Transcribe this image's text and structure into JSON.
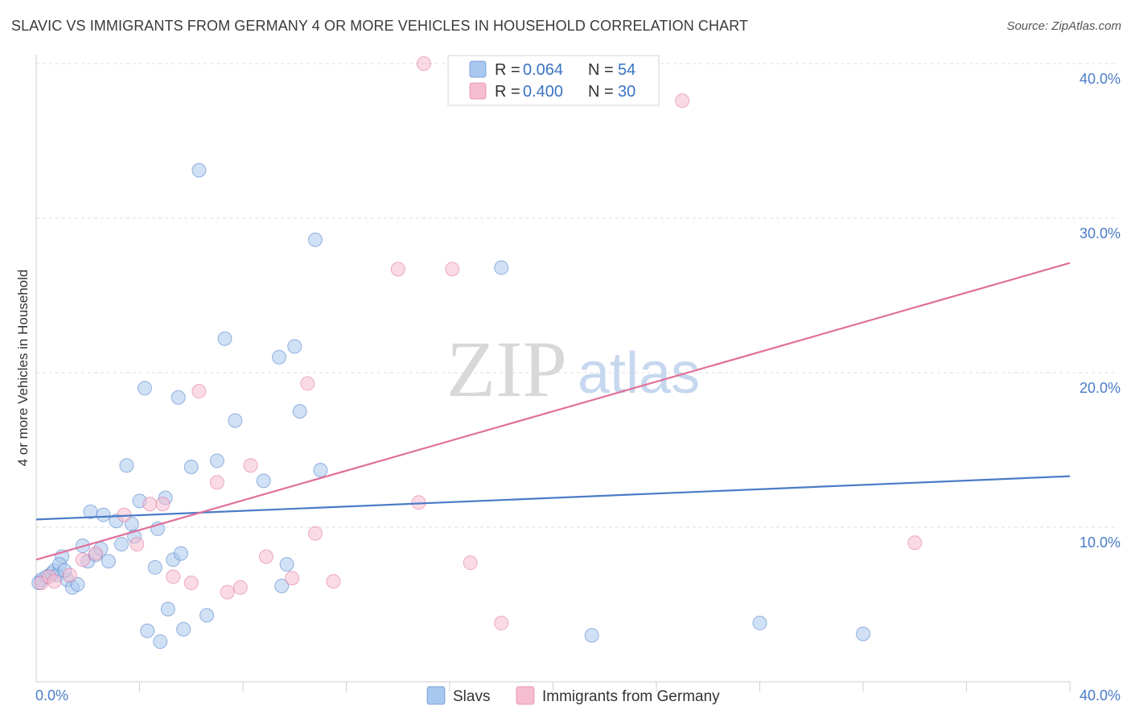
{
  "title": "SLAVIC VS IMMIGRANTS FROM GERMANY 4 OR MORE VEHICLES IN HOUSEHOLD CORRELATION CHART",
  "source": "Source: ZipAtlas.com",
  "watermark": {
    "zip": "ZIP",
    "atlas": "atlas"
  },
  "chart_data": {
    "type": "scatter",
    "ylabel": "4 or more Vehicles in Household",
    "xlim": [
      0,
      40
    ],
    "ylim": [
      0,
      40
    ],
    "x_tick_labels": {
      "min": "0.0%",
      "max": "40.0%"
    },
    "y_ticks": [
      {
        "value": 10,
        "label": "10.0%"
      },
      {
        "value": 20,
        "label": "20.0%"
      },
      {
        "value": 30,
        "label": "30.0%"
      },
      {
        "value": 40,
        "label": "40.0%"
      }
    ],
    "legend": {
      "r_label": "R =",
      "n_label": "N =",
      "entries": [
        {
          "name": "Slavs",
          "r": "0.064",
          "n": "54"
        },
        {
          "name": "Immigrants from Germany",
          "r": "0.400",
          "n": "30"
        }
      ]
    },
    "series": [
      {
        "name": "Slavs",
        "color": "#4a7cc7",
        "fill": "#a9c8ef",
        "trend": {
          "x0": 0,
          "y0": 10.5,
          "x1": 40,
          "y1": 13.3
        },
        "points": [
          [
            0.2,
            6.6
          ],
          [
            0.4,
            6.8
          ],
          [
            0.6,
            7.0
          ],
          [
            0.7,
            7.2
          ],
          [
            0.8,
            6.9
          ],
          [
            1.0,
            8.1
          ],
          [
            0.9,
            7.6
          ],
          [
            1.2,
            6.6
          ],
          [
            1.4,
            6.1
          ],
          [
            1.6,
            6.3
          ],
          [
            1.8,
            8.8
          ],
          [
            2.0,
            7.8
          ],
          [
            2.1,
            11.0
          ],
          [
            2.3,
            8.2
          ],
          [
            2.5,
            8.6
          ],
          [
            2.8,
            7.8
          ],
          [
            2.6,
            10.8
          ],
          [
            3.1,
            10.4
          ],
          [
            3.3,
            8.9
          ],
          [
            3.5,
            14.0
          ],
          [
            3.7,
            10.2
          ],
          [
            3.8,
            9.4
          ],
          [
            4.0,
            11.7
          ],
          [
            4.2,
            19.0
          ],
          [
            4.3,
            3.3
          ],
          [
            4.6,
            7.4
          ],
          [
            4.7,
            9.9
          ],
          [
            4.8,
            2.6
          ],
          [
            5.0,
            11.9
          ],
          [
            5.1,
            4.7
          ],
          [
            5.3,
            7.9
          ],
          [
            5.5,
            18.4
          ],
          [
            5.6,
            8.3
          ],
          [
            5.7,
            3.4
          ],
          [
            6.0,
            13.9
          ],
          [
            6.3,
            33.1
          ],
          [
            6.6,
            4.3
          ],
          [
            7.0,
            14.3
          ],
          [
            7.3,
            22.2
          ],
          [
            7.7,
            16.9
          ],
          [
            8.8,
            13.0
          ],
          [
            9.4,
            21.0
          ],
          [
            9.5,
            6.2
          ],
          [
            9.7,
            7.6
          ],
          [
            10.0,
            21.7
          ],
          [
            10.2,
            17.5
          ],
          [
            10.8,
            28.6
          ],
          [
            11.0,
            13.7
          ],
          [
            18.0,
            26.8
          ],
          [
            21.5,
            3.0
          ],
          [
            28.0,
            3.8
          ],
          [
            32.0,
            3.1
          ],
          [
            0.1,
            6.4
          ],
          [
            1.1,
            7.2
          ]
        ]
      },
      {
        "name": "Immigrants from Germany",
        "color": "#e0709a",
        "fill": "#f6bdd0",
        "trend": {
          "x0": 0,
          "y0": 7.9,
          "x1": 40,
          "y1": 27.1
        },
        "points": [
          [
            0.2,
            6.4
          ],
          [
            0.5,
            6.8
          ],
          [
            0.7,
            6.5
          ],
          [
            1.3,
            6.9
          ],
          [
            1.8,
            7.9
          ],
          [
            2.3,
            8.3
          ],
          [
            3.4,
            10.8
          ],
          [
            3.9,
            8.9
          ],
          [
            4.4,
            11.5
          ],
          [
            4.9,
            11.5
          ],
          [
            5.3,
            6.8
          ],
          [
            6.0,
            6.4
          ],
          [
            6.3,
            18.8
          ],
          [
            7.0,
            12.9
          ],
          [
            7.4,
            5.8
          ],
          [
            7.9,
            6.1
          ],
          [
            8.3,
            14.0
          ],
          [
            8.9,
            8.1
          ],
          [
            9.9,
            6.7
          ],
          [
            10.5,
            19.3
          ],
          [
            10.8,
            9.6
          ],
          [
            11.5,
            6.5
          ],
          [
            14.0,
            26.7
          ],
          [
            14.8,
            11.6
          ],
          [
            15.0,
            40.0
          ],
          [
            16.1,
            26.7
          ],
          [
            16.8,
            7.7
          ],
          [
            18.0,
            3.8
          ],
          [
            25.0,
            37.6
          ],
          [
            34.0,
            9.0
          ]
        ]
      }
    ]
  }
}
